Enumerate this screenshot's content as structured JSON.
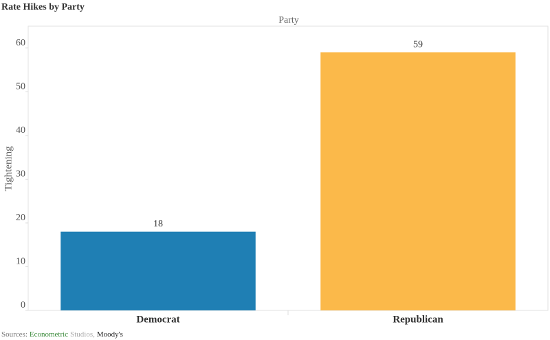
{
  "chart_data": {
    "type": "bar",
    "title": "Rate Hikes by Party",
    "column_header": "Party",
    "y_label": "Tightening",
    "categories": [
      "Democrat",
      "Republican"
    ],
    "values": [
      18,
      59
    ],
    "colors": [
      "#1f7fb4",
      "#fbb94a"
    ],
    "ylim": [
      0,
      65
    ],
    "yticks": [
      0,
      10,
      20,
      30,
      40,
      50,
      60
    ],
    "grid": false,
    "source_parts": [
      {
        "text": "Sources:",
        "color": "#777777"
      },
      {
        "text": "Econometric",
        "color": "#3a8a3a"
      },
      {
        "text": "Studios,",
        "color": "#aaaaaa"
      },
      {
        "text": "Moody's",
        "color": "#222222"
      }
    ]
  }
}
